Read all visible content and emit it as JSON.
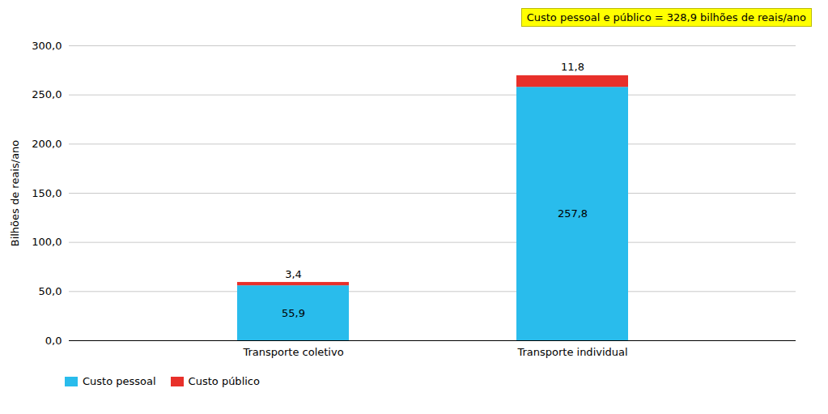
{
  "chart_data": {
    "type": "bar",
    "stacked": true,
    "categories": [
      "Transporte coletivo",
      "Transporte individual"
    ],
    "series": [
      {
        "name": "Custo pessoal",
        "color": "#29BCEC",
        "values": [
          55.9,
          257.8
        ],
        "value_labels": [
          "55,9",
          "257,8"
        ]
      },
      {
        "name": "Custo público",
        "color": "#E8302A",
        "values": [
          3.4,
          11.8
        ],
        "value_labels": [
          "3,4",
          "11,8"
        ]
      }
    ],
    "ylabel": "Bilhões de reais/ano",
    "annotation": "Custo pessoal e público = 328,9 bilhões de reais/ano",
    "ylim": [
      0,
      300
    ],
    "yticks": [
      {
        "value": 0,
        "label": "0,0"
      },
      {
        "value": 50,
        "label": "50,0"
      },
      {
        "value": 100,
        "label": "100,0"
      },
      {
        "value": 150,
        "label": "150,0"
      },
      {
        "value": 200,
        "label": "200,0"
      },
      {
        "value": 250,
        "label": "250,0"
      },
      {
        "value": 300,
        "label": "300,0"
      }
    ],
    "grid": true,
    "data_labels": true,
    "legend": "lower left"
  }
}
